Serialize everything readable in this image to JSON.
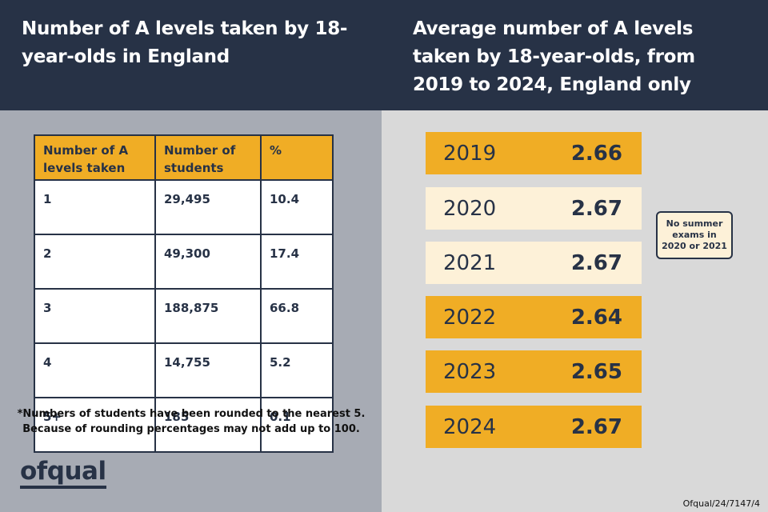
{
  "header": {
    "left_title": "Number of A levels taken by 18-year-olds in England",
    "right_title": "Average number of A levels taken by 18-year-olds, from 2019 to 2024, England only"
  },
  "table": {
    "headers": [
      "Number of A levels taken",
      "Number of students",
      "%"
    ],
    "rows": [
      [
        "1",
        "29,495",
        "10.4"
      ],
      [
        "2",
        "49,300",
        "17.4"
      ],
      [
        "3",
        "188,875",
        "66.8"
      ],
      [
        "4",
        "14,755",
        "5.2"
      ],
      [
        "5+",
        "185",
        "0.1"
      ]
    ]
  },
  "footnote": {
    "line1": "*Numbers of students have been rounded to the nearest 5.",
    "line2": "Because of rounding percentages may not add up to 100."
  },
  "logo": "ofqual",
  "callout": {
    "line1": "No summer",
    "line2": "exams in",
    "line3": "2020 or 2021"
  },
  "reference": "Ofqual/24/7147/4",
  "colors": {
    "navy": "#273246",
    "gold": "#f0ad25",
    "cream": "#fdf1d8",
    "left_bg": "#a7abb4",
    "right_bg": "#d9d9d9"
  },
  "chart_data": [
    {
      "type": "table",
      "title": "Number of A levels taken by 18-year-olds in England",
      "columns": [
        "Number of A levels taken",
        "Number of students",
        "%"
      ],
      "rows": [
        [
          "1",
          29495,
          10.4
        ],
        [
          "2",
          49300,
          17.4
        ],
        [
          "3",
          188875,
          66.8
        ],
        [
          "4",
          14755,
          5.2
        ],
        [
          "5+",
          185,
          0.1
        ]
      ]
    },
    {
      "type": "table",
      "title": "Average number of A levels taken by 18-year-olds, from 2019 to 2024, England only",
      "categories": [
        "2019",
        "2020",
        "2021",
        "2022",
        "2023",
        "2024"
      ],
      "values": [
        2.66,
        2.67,
        2.67,
        2.64,
        2.65,
        2.67
      ],
      "highlight": [
        "normal",
        "no-exams",
        "no-exams",
        "normal",
        "normal",
        "normal"
      ],
      "annotations": [
        "No summer exams in 2020 or 2021"
      ]
    }
  ]
}
